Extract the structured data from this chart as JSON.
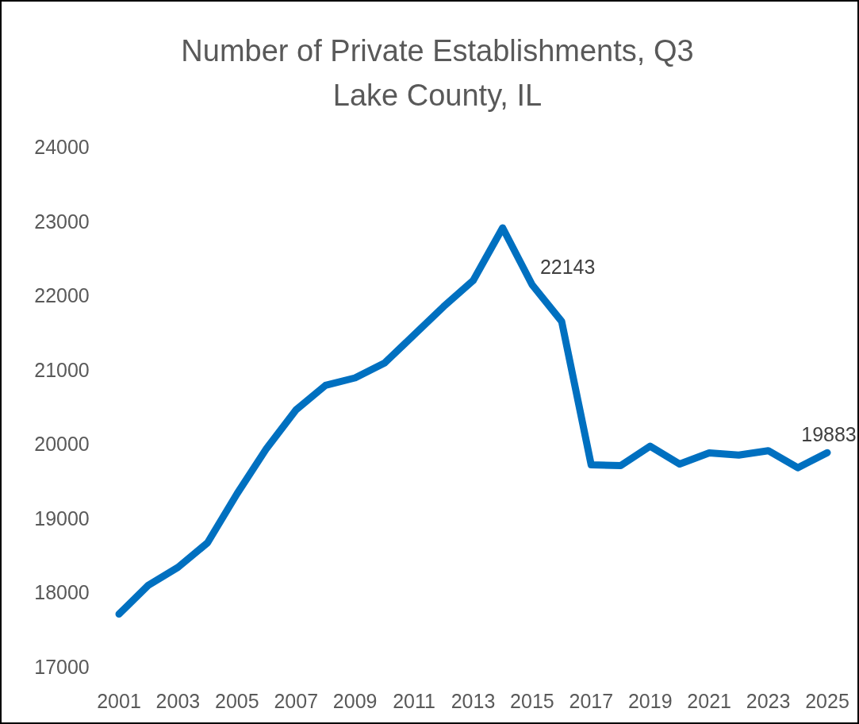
{
  "chart_data": {
    "type": "line",
    "title": "Number of Private Establishments, Q3",
    "subtitle": "Lake County, IL",
    "x": [
      2001,
      2002,
      2003,
      2004,
      2005,
      2006,
      2007,
      2008,
      2009,
      2010,
      2011,
      2012,
      2013,
      2014,
      2015,
      2016,
      2017,
      2018,
      2019,
      2020,
      2021,
      2022,
      2023,
      2024,
      2025
    ],
    "series": [
      {
        "color": "#0070c0",
        "values": [
          17710,
          18100,
          18340,
          18670,
          19330,
          19940,
          20460,
          20790,
          20890,
          21090,
          21470,
          21850,
          22200,
          22910,
          22143,
          21650,
          19720,
          19710,
          19970,
          19730,
          19880,
          19850,
          19910,
          19680,
          19883
        ],
        "value_labels": [
          null,
          null,
          null,
          null,
          null,
          null,
          null,
          null,
          null,
          null,
          null,
          null,
          null,
          null,
          "22143",
          null,
          null,
          null,
          null,
          null,
          null,
          null,
          null,
          null,
          "19883"
        ]
      }
    ],
    "xlim": [
      2001,
      2025
    ],
    "xticks": [
      2001,
      2003,
      2005,
      2007,
      2009,
      2011,
      2013,
      2015,
      2017,
      2019,
      2021,
      2023,
      2025
    ],
    "ylim": [
      17000,
      24000
    ],
    "yticks": [
      17000,
      18000,
      19000,
      20000,
      21000,
      22000,
      23000,
      24000
    ],
    "grid": false,
    "marker": "none",
    "line_style": "solid"
  }
}
